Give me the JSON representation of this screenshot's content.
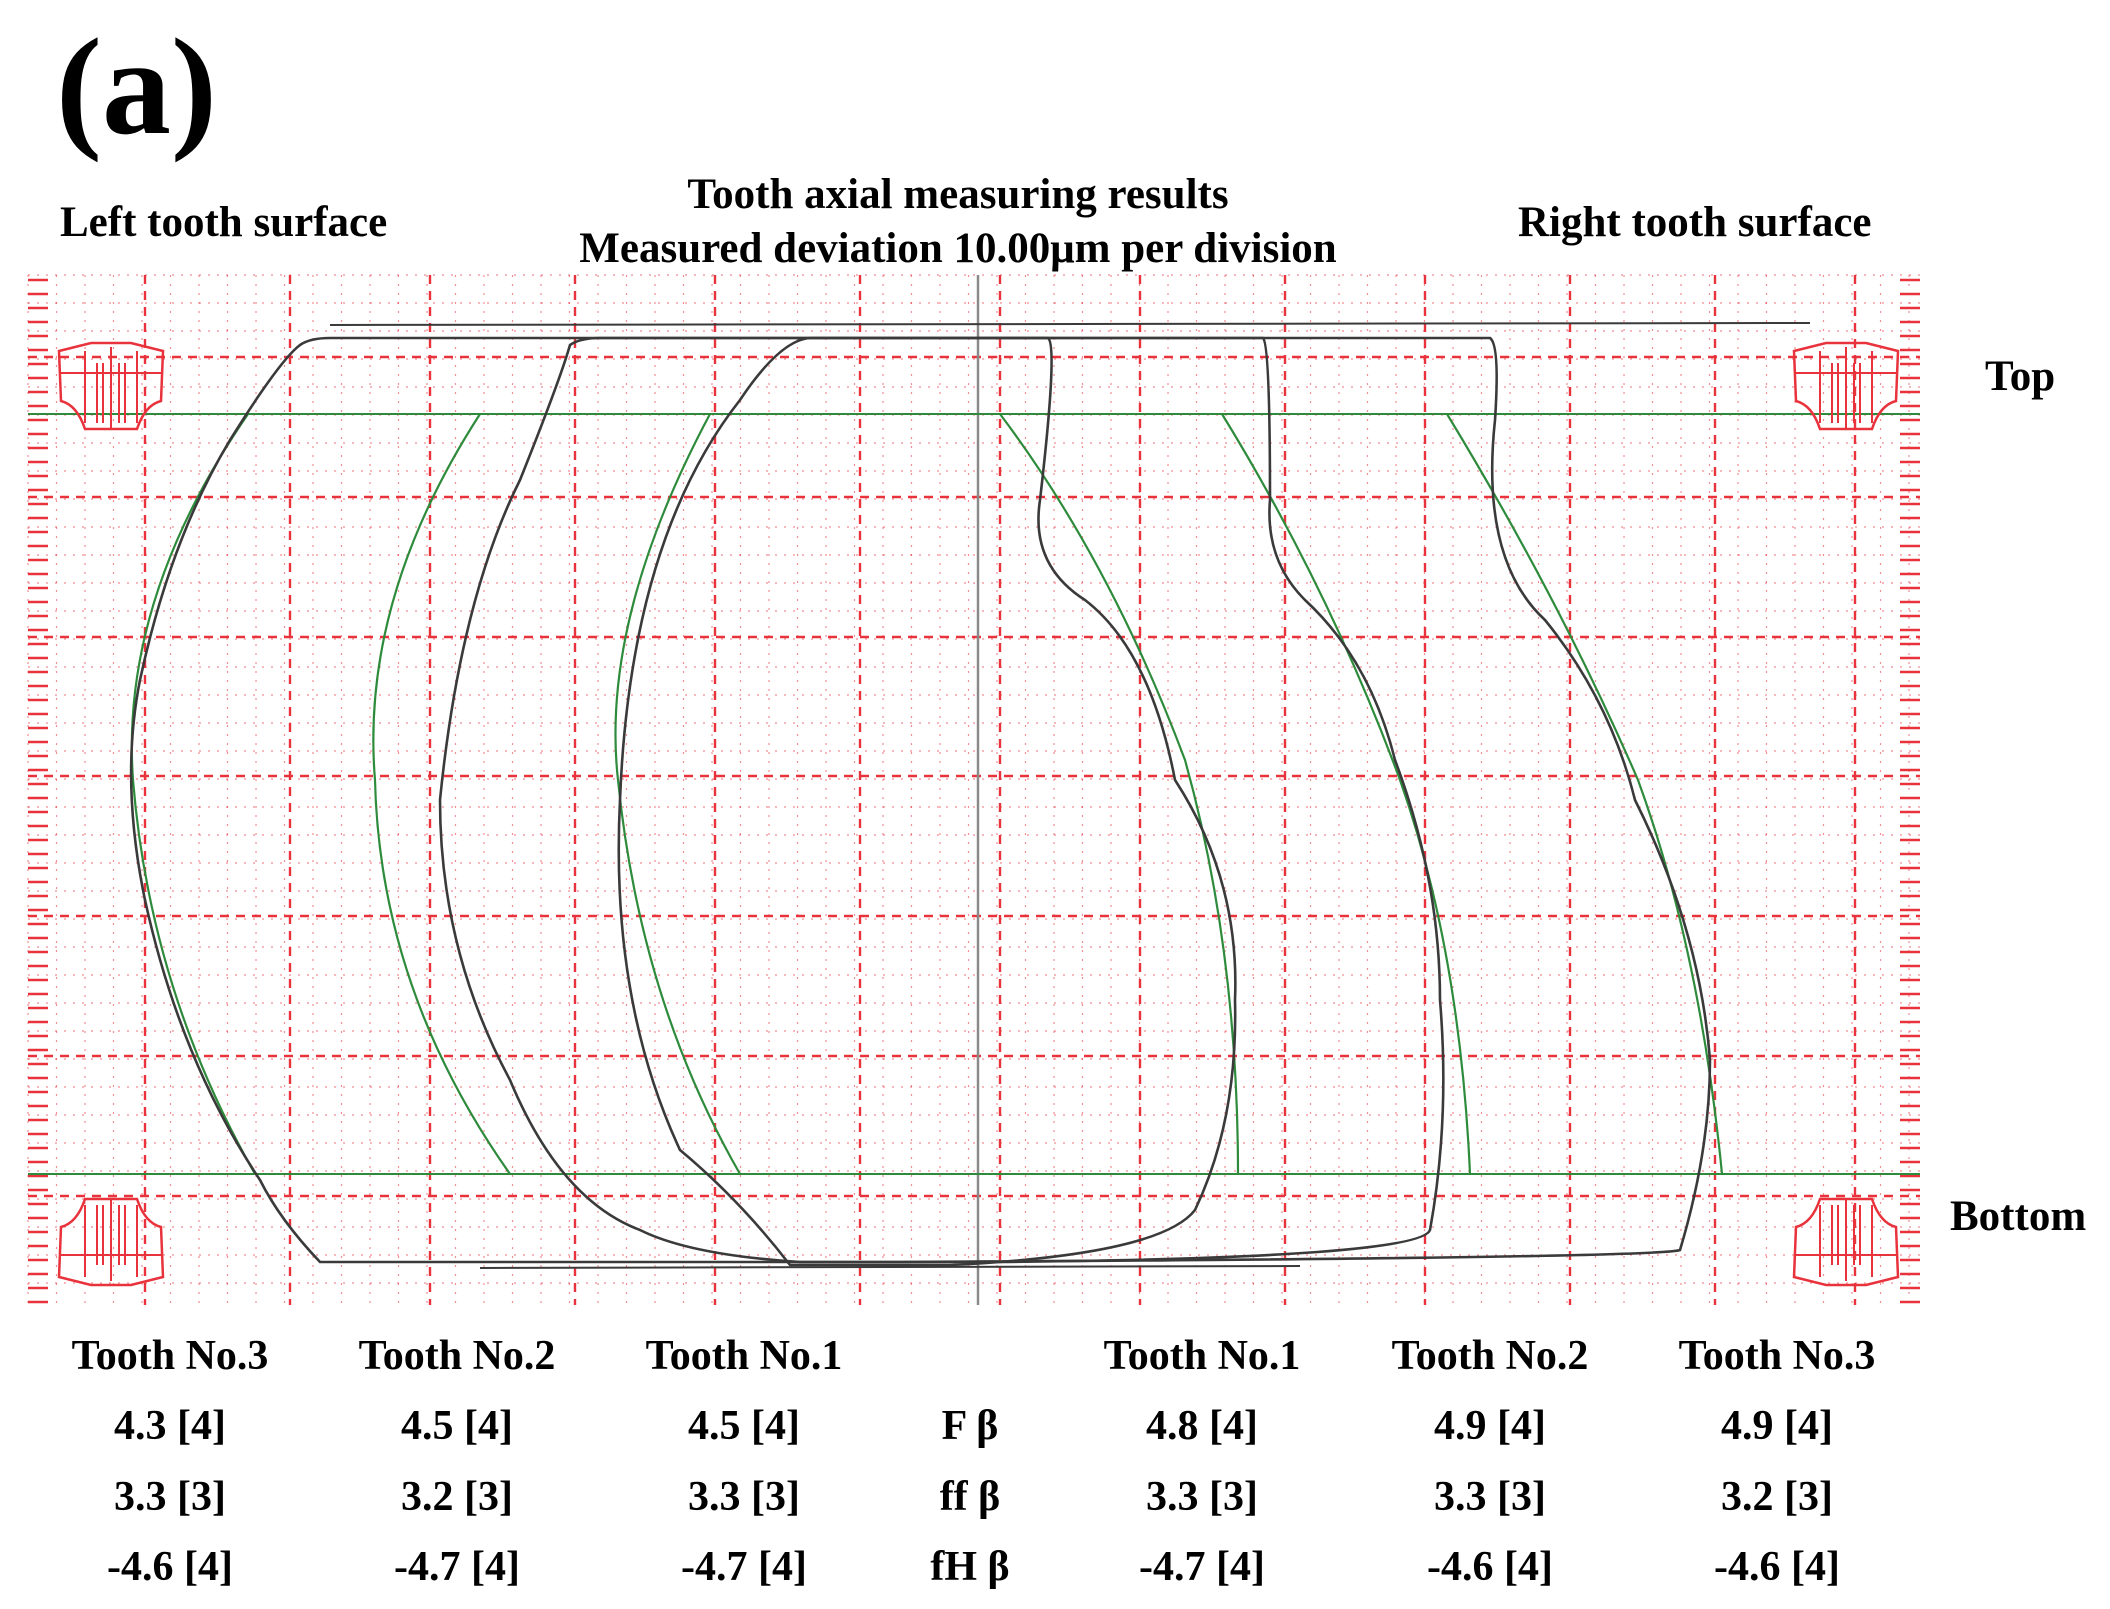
{
  "panel_label": "(a)",
  "header": {
    "left": "Left tooth surface",
    "title_line1": "Tooth axial measuring results",
    "title_line2": "Measured deviation 10.00μm per division",
    "right": "Right tooth surface"
  },
  "side_labels": {
    "top": "Top",
    "bottom": "Bottom"
  },
  "colors": {
    "grid": "#e8323c",
    "trace": "#3a3a3a",
    "fit": "#2e8b3c",
    "axis": "#8a8a8a"
  },
  "chart_data": {
    "type": "line",
    "title": "Tooth axial measuring results",
    "subtitle": "Measured deviation 10.00μm per division",
    "scale": {
      "deviation_per_division_um": 10.0
    },
    "grid": true,
    "columns": [
      "Tooth No.3",
      "Tooth No.2",
      "Tooth No.1",
      "Tooth No.1",
      "Tooth No.2",
      "Tooth No.3"
    ],
    "metrics": [
      "F β",
      "ff β",
      "fH β"
    ],
    "left_surface": [
      {
        "tooth": "Tooth No.3",
        "F_beta": "4.3 [4]",
        "ff_beta": "3.3 [3]",
        "fH_beta": "-4.6 [4]"
      },
      {
        "tooth": "Tooth No.2",
        "F_beta": "4.5 [4]",
        "ff_beta": "3.2 [3]",
        "fH_beta": "-4.7 [4]"
      },
      {
        "tooth": "Tooth No.1",
        "F_beta": "4.5 [4]",
        "ff_beta": "3.3 [3]",
        "fH_beta": "-4.7 [4]"
      }
    ],
    "right_surface": [
      {
        "tooth": "Tooth No.1",
        "F_beta": "4.8 [4]",
        "ff_beta": "3.3 [3]",
        "fH_beta": "-4.7 [4]"
      },
      {
        "tooth": "Tooth No.2",
        "F_beta": "4.9 [4]",
        "ff_beta": "3.3 [3]",
        "fH_beta": "-4.6 [4]"
      },
      {
        "tooth": "Tooth No.3",
        "F_beta": "4.9 [4]",
        "ff_beta": "3.2 [3]",
        "fH_beta": "-4.6 [4]"
      }
    ]
  }
}
